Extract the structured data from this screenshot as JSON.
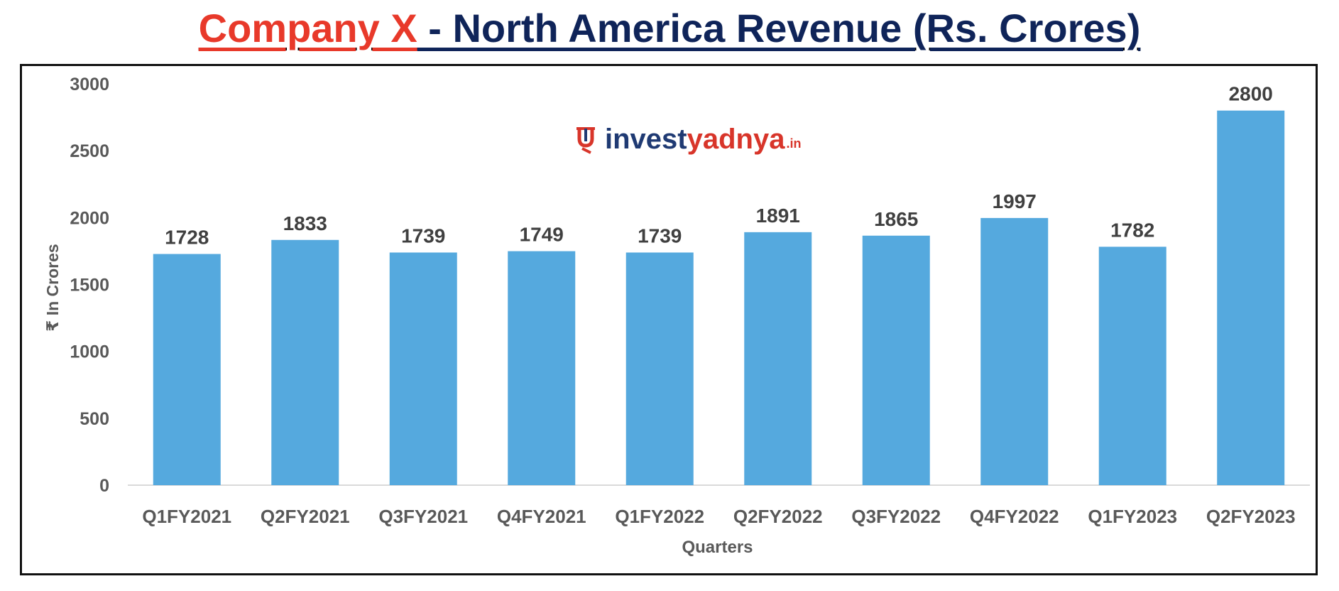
{
  "title": {
    "company": "Company X",
    "rest": " - North America Revenue (Rs. Crores)"
  },
  "logo": {
    "mark": "logo-mark",
    "invest": "invest",
    "yadnya": "yadnya",
    "domain": ".in"
  },
  "colors": {
    "bar": "#55a9de",
    "axis_text": "#595959",
    "label_text": "#404040",
    "title_company": "#e8392a",
    "title_rest": "#0f2459"
  },
  "chart_data": {
    "type": "bar",
    "title": "Company X - North America Revenue (Rs. Crores)",
    "xlabel": "Quarters",
    "ylabel": "₹ In Crores",
    "categories": [
      "Q1FY2021",
      "Q2FY2021",
      "Q3FY2021",
      "Q4FY2021",
      "Q1FY2022",
      "Q2FY2022",
      "Q3FY2022",
      "Q4FY2022",
      "Q1FY2023",
      "Q2FY2023"
    ],
    "values": [
      1728,
      1833,
      1739,
      1749,
      1739,
      1891,
      1865,
      1997,
      1782,
      2800
    ],
    "ylim": [
      0,
      3000
    ],
    "yticks": [
      0,
      500,
      1000,
      1500,
      2000,
      2500,
      3000
    ],
    "grid": false,
    "data_labels": true,
    "legend": "none"
  }
}
